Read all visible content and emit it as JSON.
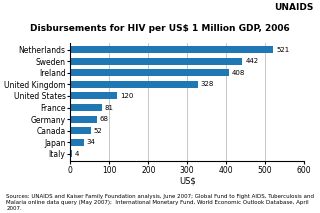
{
  "chart_data": {
    "type": "bar",
    "orientation": "horizontal",
    "title": "Disbursements for HIV per US$ 1 Million GDP, 2006",
    "categories": [
      "Italy",
      "Japan",
      "Canada",
      "Germany",
      "France",
      "United States",
      "United Kingdom",
      "Ireland",
      "Sweden",
      "Netherlands"
    ],
    "values": [
      4,
      34,
      52,
      68,
      81,
      120,
      328,
      408,
      442,
      521
    ],
    "xlabel": "US$",
    "xlim": [
      0,
      600
    ],
    "xticks": [
      0,
      100,
      200,
      300,
      400,
      500,
      600
    ],
    "grid": true,
    "data_labels": true,
    "annotations": [
      "UNAIDS",
      "Sources: UNAIDS and Kaiser Family Foundation analysis, June 2007; Global Fund to Fight AIDS, Tuberculosis and Malaria online data query (May 2007);  International Monetary Fund, World Economic Outlook Database, April 2007."
    ]
  }
}
